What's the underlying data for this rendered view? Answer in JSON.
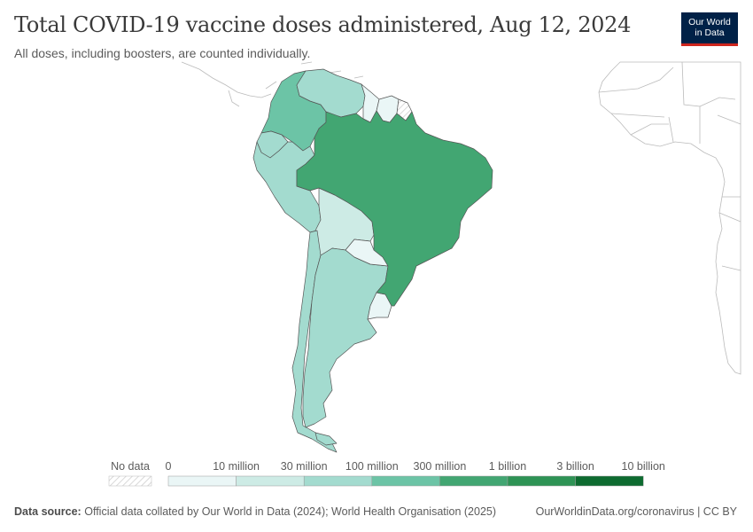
{
  "header": {
    "title": "Total COVID-19 vaccine doses administered, Aug 12, 2024",
    "subtitle": "All doses, including boosters, are counted individually."
  },
  "logo": {
    "line1": "Our World",
    "line2": "in Data",
    "bg_color": "#002147",
    "accent_color": "#ce261e"
  },
  "legend": {
    "no_data_label": "No data",
    "bins": [
      {
        "label": "0",
        "color": "#eaf6f6"
      },
      {
        "label": "10 million",
        "color": "#cdebe5"
      },
      {
        "label": "30 million",
        "color": "#a3dbcf"
      },
      {
        "label": "100 million",
        "color": "#6cc4a6"
      },
      {
        "label": "300 million",
        "color": "#42a672"
      },
      {
        "label": "1 billion",
        "color": "#2e9355"
      },
      {
        "label": "3 billion",
        "color": "#0d6b30"
      }
    ],
    "last_label": "10 billion"
  },
  "map": {
    "regions": [
      {
        "name": "Brazil",
        "color": "#42a672"
      },
      {
        "name": "Argentina",
        "color": "#6cc4a6"
      },
      {
        "name": "Colombia",
        "color": "#a3dbcf"
      },
      {
        "name": "Peru",
        "color": "#a3dbcf"
      },
      {
        "name": "Chile",
        "color": "#a3dbcf"
      },
      {
        "name": "Venezuela",
        "color": "#a3dbcf"
      },
      {
        "name": "Ecuador",
        "color": "#a3dbcf"
      },
      {
        "name": "Bolivia",
        "color": "#cdebe5"
      },
      {
        "name": "Paraguay",
        "color": "#eaf6f6"
      },
      {
        "name": "Uruguay",
        "color": "#eaf6f6"
      },
      {
        "name": "Guyana",
        "color": "#eaf6f6"
      },
      {
        "name": "Suriname",
        "color": "#eaf6f6"
      },
      {
        "name": "French Guiana",
        "color": "no-data"
      }
    ]
  },
  "footer": {
    "source_label": "Data source:",
    "source_text": "Official data collated by Our World in Data (2024); World Health Organisation (2025)",
    "right_text": "OurWorldinData.org/coronavirus | CC BY"
  }
}
